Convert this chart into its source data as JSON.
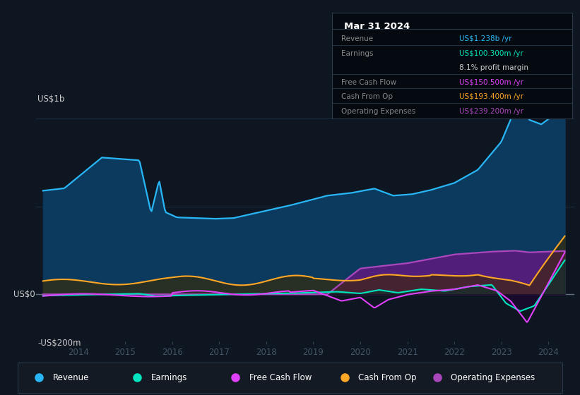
{
  "bg_color": "#0e1621",
  "plot_bg_color": "#0e1621",
  "grid_color_h": "#1c2e42",
  "zero_line_color": "#607080",
  "revenue_color": "#29b6f6",
  "revenue_fill": "#0b3a5e",
  "earnings_color": "#00e5c0",
  "fcf_color": "#e040fb",
  "cashfromop_color": "#ffa726",
  "opex_color": "#ab47bc",
  "opex_fill": "#5e1a80",
  "ylabel_top": "US$1b",
  "ylabel_zero": "US$0",
  "ylabel_bottom": "-US$200m",
  "xlim": [
    2013.1,
    2024.55
  ],
  "ylim": [
    -270,
    1080
  ],
  "y_top_gridline": 1000,
  "y_zero_gridline": 0,
  "y_mid_gridline": 500,
  "xtick_years": [
    2014,
    2015,
    2016,
    2017,
    2018,
    2019,
    2020,
    2021,
    2022,
    2023,
    2024
  ],
  "info_title": "Mar 31 2024",
  "info_rows": [
    {
      "label": "Revenue",
      "value": "US$1.238b /yr",
      "color": "#29b6f6",
      "divider_above": true
    },
    {
      "label": "Earnings",
      "value": "US$100.300m /yr",
      "color": "#00e5c0",
      "divider_above": true
    },
    {
      "label": "",
      "value": "8.1% profit margin",
      "color": "#cccccc",
      "divider_above": false
    },
    {
      "label": "Free Cash Flow",
      "value": "US$150.500m /yr",
      "color": "#e040fb",
      "divider_above": true
    },
    {
      "label": "Cash From Op",
      "value": "US$193.400m /yr",
      "color": "#ffa726",
      "divider_above": true
    },
    {
      "label": "Operating Expenses",
      "value": "US$239.200m /yr",
      "color": "#ab47bc",
      "divider_above": true
    }
  ],
  "legend_items": [
    {
      "label": "Revenue",
      "color": "#29b6f6"
    },
    {
      "label": "Earnings",
      "color": "#00e5c0"
    },
    {
      "label": "Free Cash Flow",
      "color": "#e040fb"
    },
    {
      "label": "Cash From Op",
      "color": "#ffa726"
    },
    {
      "label": "Operating Expenses",
      "color": "#ab47bc"
    }
  ]
}
